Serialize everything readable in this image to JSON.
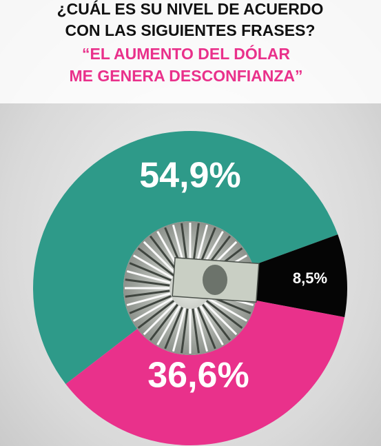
{
  "chart_data": {
    "type": "donut",
    "title": [
      "¿CUÁL ES SU NIVEL DE ACUERDO",
      "CON LAS SIGUIENTES FRASES?"
    ],
    "subtitle": [
      "“EL AUMENTO DEL DÓLAR",
      "ME GENERA DESCONFIANZA”"
    ],
    "values": [
      54.9,
      8.5,
      36.6
    ],
    "value_labels": [
      "54,9%",
      "8,5%",
      "36,6%"
    ],
    "colors": [
      "#2e9a89",
      "#050505",
      "#e9318b"
    ]
  }
}
